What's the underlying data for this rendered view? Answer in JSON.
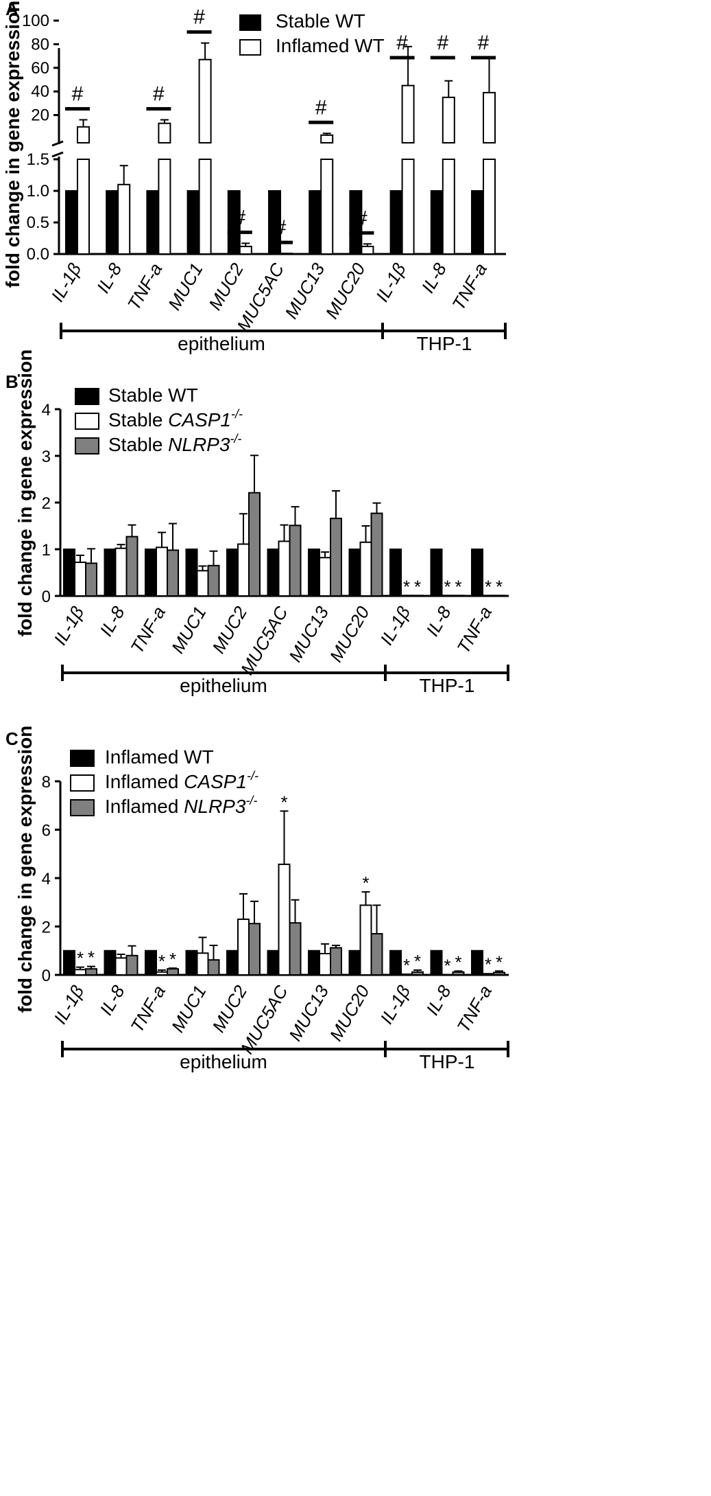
{
  "chart_data": [
    {
      "panel": "A",
      "type": "bar",
      "ylabel": "fold change in gene expression",
      "ytick_labels_lower": [
        "0.0",
        "0.5",
        "1.0",
        "1.5"
      ],
      "ytick_labels_upper": [
        "20",
        "40",
        "60",
        "80",
        "100"
      ],
      "ylim_lower": [
        0,
        1.5
      ],
      "ylim_upper": [
        0,
        100
      ],
      "categories": [
        "IL-1β",
        "IL-8",
        "TNF-a",
        "MUC1",
        "MUC2",
        "MUC5AC",
        "MUC13",
        "MUC20",
        "IL-1β",
        "IL-8",
        "TNF-a"
      ],
      "series": [
        {
          "name": "Stable WT",
          "color": "#000000",
          "values": [
            1,
            1,
            1,
            1,
            1,
            1,
            1,
            1,
            1,
            1,
            1
          ],
          "errors": [
            0,
            0,
            0,
            0,
            0,
            0,
            0,
            0,
            0,
            0,
            0
          ]
        },
        {
          "name": "Inflamed WT",
          "color": "#ffffff",
          "values": [
            10,
            1.1,
            13,
            67,
            0.12,
            0.01,
            3,
            0.12,
            45,
            35,
            39
          ],
          "errors": [
            6,
            0.3,
            3,
            14,
            0.05,
            0,
            1.5,
            0.04,
            33,
            14,
            30
          ]
        }
      ],
      "markers": [
        "#",
        "",
        "#",
        "#",
        "#",
        "#",
        "#",
        "#",
        "#",
        "#",
        "#"
      ],
      "groups": [
        {
          "label": "epithelium"
        },
        {
          "label": "THP-1"
        }
      ]
    },
    {
      "panel": "B",
      "type": "bar",
      "ylabel": "fold change in gene expression",
      "ylim": [
        0,
        4
      ],
      "ytick_labels": [
        "0",
        "1",
        "2",
        "3",
        "4"
      ],
      "categories": [
        "IL-1β",
        "IL-8",
        "TNF-a",
        "MUC1",
        "MUC2",
        "MUC5AC",
        "MUC13",
        "MUC20",
        "IL-1β",
        "IL-8",
        "TNF-a"
      ],
      "series": [
        {
          "name": "Stable WT",
          "legend_main": "Stable WT",
          "legend_italic": "",
          "color": "#000000",
          "values": [
            1,
            1,
            1,
            1,
            1,
            1,
            1,
            1,
            1,
            1,
            1
          ],
          "errors": [
            0,
            0,
            0,
            0,
            0,
            0,
            0,
            0,
            0,
            0,
            0
          ]
        },
        {
          "name": "Stable CASP1-/-",
          "legend_main": "Stable ",
          "legend_italic": "CASP1",
          "legend_sup": "-/-",
          "color": "#ffffff",
          "values": [
            0.72,
            1.02,
            1.04,
            0.54,
            1.11,
            1.17,
            0.82,
            1.15,
            0.01,
            0.01,
            0.01
          ],
          "errors": [
            0.15,
            0.08,
            0.32,
            0.1,
            0.65,
            0.35,
            0.12,
            0.35,
            0,
            0,
            0
          ]
        },
        {
          "name": "Stable NLRP3-/-",
          "legend_main": "Stable ",
          "legend_italic": "NLRP3",
          "legend_sup": "-/-",
          "color": "#808080",
          "values": [
            0.7,
            1.27,
            0.98,
            0.65,
            2.21,
            1.51,
            1.66,
            1.77,
            0.01,
            0.01,
            0.01
          ],
          "errors": [
            0.31,
            0.25,
            0.57,
            0.31,
            0.8,
            0.4,
            0.59,
            0.22,
            0,
            0,
            0
          ]
        }
      ],
      "stars": [
        [
          "",
          ""
        ],
        [
          "",
          ""
        ],
        [
          "",
          ""
        ],
        [
          "",
          ""
        ],
        [
          "",
          ""
        ],
        [
          "",
          ""
        ],
        [
          "",
          ""
        ],
        [
          "",
          ""
        ],
        [
          "*",
          "*"
        ],
        [
          "*",
          "*"
        ],
        [
          "*",
          "*"
        ]
      ],
      "groups": [
        {
          "label": "epithelium"
        },
        {
          "label": "THP-1"
        }
      ]
    },
    {
      "panel": "C",
      "type": "bar",
      "ylabel": "fold change in gene expression",
      "ylim": [
        0,
        8
      ],
      "ytick_labels": [
        "0",
        "2",
        "4",
        "6",
        "8"
      ],
      "categories": [
        "IL-1β",
        "IL-8",
        "TNF-a",
        "MUC1",
        "MUC2",
        "MUC5AC",
        "MUC13",
        "MUC20",
        "IL-1β",
        "IL-8",
        "TNF-a"
      ],
      "series": [
        {
          "name": "Inflamed WT",
          "legend_main": "Inflamed WT",
          "legend_italic": "",
          "color": "#000000",
          "values": [
            1,
            1,
            1,
            1,
            1,
            1,
            1,
            1,
            1,
            1,
            1
          ],
          "errors": [
            0,
            0,
            0,
            0,
            0,
            0,
            0,
            0,
            0,
            0,
            0
          ]
        },
        {
          "name": "Inflamed CASP1-/-",
          "legend_main": "Inflamed ",
          "legend_italic": "CASP1",
          "legend_sup": "-/-",
          "color": "#ffffff",
          "values": [
            0.22,
            0.7,
            0.12,
            0.9,
            2.3,
            4.57,
            0.88,
            2.88,
            0.03,
            0.01,
            0.05
          ],
          "errors": [
            0.1,
            0.15,
            0.08,
            0.65,
            1.05,
            2.2,
            0.4,
            0.55,
            0,
            0,
            0.02
          ]
        },
        {
          "name": "Inflamed NLRP3-/-",
          "legend_main": "Inflamed ",
          "legend_italic": "NLRP3",
          "legend_sup": "-/-",
          "color": "#808080",
          "values": [
            0.25,
            0.8,
            0.25,
            0.62,
            2.12,
            2.15,
            1.12,
            1.7,
            0.12,
            0.12,
            0.1
          ],
          "errors": [
            0.1,
            0.4,
            0.03,
            0.6,
            0.92,
            0.95,
            0.1,
            1.18,
            0.08,
            0.04,
            0.06
          ]
        }
      ],
      "stars": [
        [
          "*",
          "*"
        ],
        [
          "",
          ""
        ],
        [
          "*",
          "*"
        ],
        [
          "",
          ""
        ],
        [
          "",
          ""
        ],
        [
          "*",
          ""
        ],
        [
          "",
          ""
        ],
        [
          "*",
          ""
        ],
        [
          "*",
          "*"
        ],
        [
          "*",
          "*"
        ],
        [
          "*",
          "*"
        ]
      ],
      "groups": [
        {
          "label": "epithelium"
        },
        {
          "label": "THP-1"
        }
      ]
    }
  ]
}
